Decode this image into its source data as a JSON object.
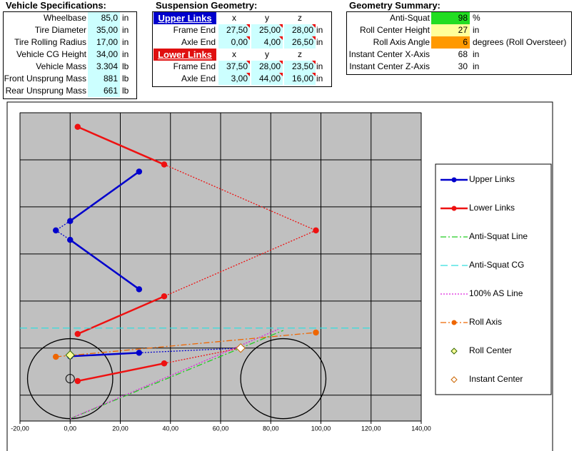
{
  "vehicle_specs": {
    "title": "Vehicle Specifications:",
    "rows": [
      [
        "Wheelbase",
        "85,0",
        "in"
      ],
      [
        "Tire Diameter",
        "35,00",
        "in"
      ],
      [
        "Tire Rolling Radius",
        "17,00",
        "in"
      ],
      [
        "Vehicle CG Height",
        "34,00",
        "in"
      ],
      [
        "Vehicle Mass",
        "3.304",
        "lb"
      ],
      [
        "Front Unsprung Mass",
        "881",
        "lb"
      ],
      [
        "Rear Unsprung Mass",
        "661",
        "lb"
      ]
    ]
  },
  "suspension_geometry": {
    "title": "Suspension Geometry:",
    "groups": [
      {
        "label": "Upper Links",
        "color": "#0000cc",
        "columns": [
          "x",
          "y",
          "z"
        ],
        "rows": [
          [
            "Frame End",
            "27,50",
            "25,00",
            "28,00",
            "in"
          ],
          [
            "Axle End",
            "0,00",
            "4,00",
            "26,50",
            "in"
          ]
        ]
      },
      {
        "label": "Lower Links",
        "color": "#e01010",
        "columns": [
          "x",
          "y",
          "z"
        ],
        "rows": [
          [
            "Frame End",
            "37,50",
            "28,00",
            "23,50",
            "in"
          ],
          [
            "Axle End",
            "3,00",
            "44,00",
            "16,00",
            "in"
          ]
        ]
      }
    ]
  },
  "geometry_summary": {
    "title": "Geometry Summary:",
    "rows": [
      {
        "label": "Anti-Squat",
        "value": "98",
        "unit": "%",
        "highlight": "#22dd22"
      },
      {
        "label": "Roll Center Height",
        "value": "27",
        "unit": "in",
        "highlight": "#ffff99"
      },
      {
        "label": "Roll Axis Angle",
        "value": "6",
        "unit": "degrees (Roll Oversteer)",
        "highlight": "#ff9900"
      },
      {
        "label": "Instant Center X-Axis",
        "value": "68",
        "unit": "in"
      },
      {
        "label": "Instant Center Z-Axis",
        "value": "30",
        "unit": "in"
      }
    ]
  },
  "chart_data": {
    "type": "scatter",
    "xlim": [
      -20,
      140
    ],
    "xticks": [
      {
        "value": -20,
        "label": "-20,00"
      },
      {
        "value": 0,
        "label": "0,00"
      },
      {
        "value": 20,
        "label": "20,00"
      },
      {
        "value": 40,
        "label": "40,00"
      },
      {
        "value": 60,
        "label": "60,00"
      },
      {
        "value": 80,
        "label": "80,00"
      },
      {
        "value": 100,
        "label": "100,00"
      },
      {
        "value": 120,
        "label": "120,00"
      },
      {
        "value": 140,
        "label": "140,00"
      }
    ],
    "ylim": [
      -1,
      130
    ],
    "yticks": [
      10,
      30,
      50,
      70,
      90,
      110,
      130
    ],
    "show_ytick_labels": false,
    "grid": true,
    "legend": "right",
    "series": [
      {
        "name": "Upper Links",
        "color": "#0000cc",
        "line": "solid",
        "marker": "circle",
        "x": [
          27.5,
          0,
          null,
          0,
          27.5,
          null,
          0,
          27.5,
          null,
          -5.7
        ],
        "y": [
          105,
          84,
          null,
          76,
          55,
          null,
          26.5,
          28,
          null,
          80
        ]
      },
      {
        "color": "#0000cc",
        "line": "dotted",
        "x": [
          0,
          -5.7,
          0,
          null,
          27.5,
          68
        ],
        "y": [
          84,
          80,
          76,
          null,
          28,
          30
        ]
      },
      {
        "name": "Lower Links",
        "color": "#ee1111",
        "line": "solid",
        "marker": "circle",
        "x": [
          3,
          37.5,
          null,
          37.5,
          3,
          null,
          3,
          37.5,
          null,
          98
        ],
        "y": [
          124,
          108,
          null,
          52,
          36,
          null,
          16,
          23.5,
          null,
          80
        ]
      },
      {
        "color": "#ee1111",
        "line": "dotted",
        "x": [
          37.5,
          98,
          37.5,
          null,
          37.5,
          68
        ],
        "y": [
          108,
          80,
          52,
          null,
          23.5,
          30
        ]
      },
      {
        "name": "Anti-Squat Line",
        "color": "#22cc22",
        "line": "dashdot",
        "x": [
          0,
          85
        ],
        "y": [
          0,
          37.5
        ]
      },
      {
        "name": "Anti-Squat CG",
        "color": "#33dddd",
        "line": "dashed",
        "x": [
          -20,
          120
        ],
        "y": [
          38.5,
          38.5
        ]
      },
      {
        "name": "100% AS Line",
        "color": "#dd22dd",
        "line": "dotted",
        "x": [
          0,
          83
        ],
        "y": [
          0,
          38
        ]
      },
      {
        "name": "Roll Axis",
        "color": "#ee6600",
        "line": "dashdot",
        "marker": "circle",
        "x": [
          -5.7,
          98
        ],
        "y": [
          26.3,
          36.6
        ]
      },
      {
        "name": "Roll Center",
        "color": "#ffff99",
        "edge": "#336600",
        "line": "none",
        "marker": "diamond",
        "x": [
          0
        ],
        "y": [
          27
        ]
      },
      {
        "name": "Instant Center",
        "color": "#ffffff",
        "edge": "#cc6600",
        "line": "none",
        "marker": "diamond",
        "x": [
          68
        ],
        "y": [
          30
        ]
      }
    ],
    "wheels": {
      "x": [
        0,
        85
      ],
      "y": [
        17,
        17
      ],
      "r": 17
    },
    "hub": {
      "x": [
        0
      ],
      "y": [
        17
      ]
    }
  }
}
